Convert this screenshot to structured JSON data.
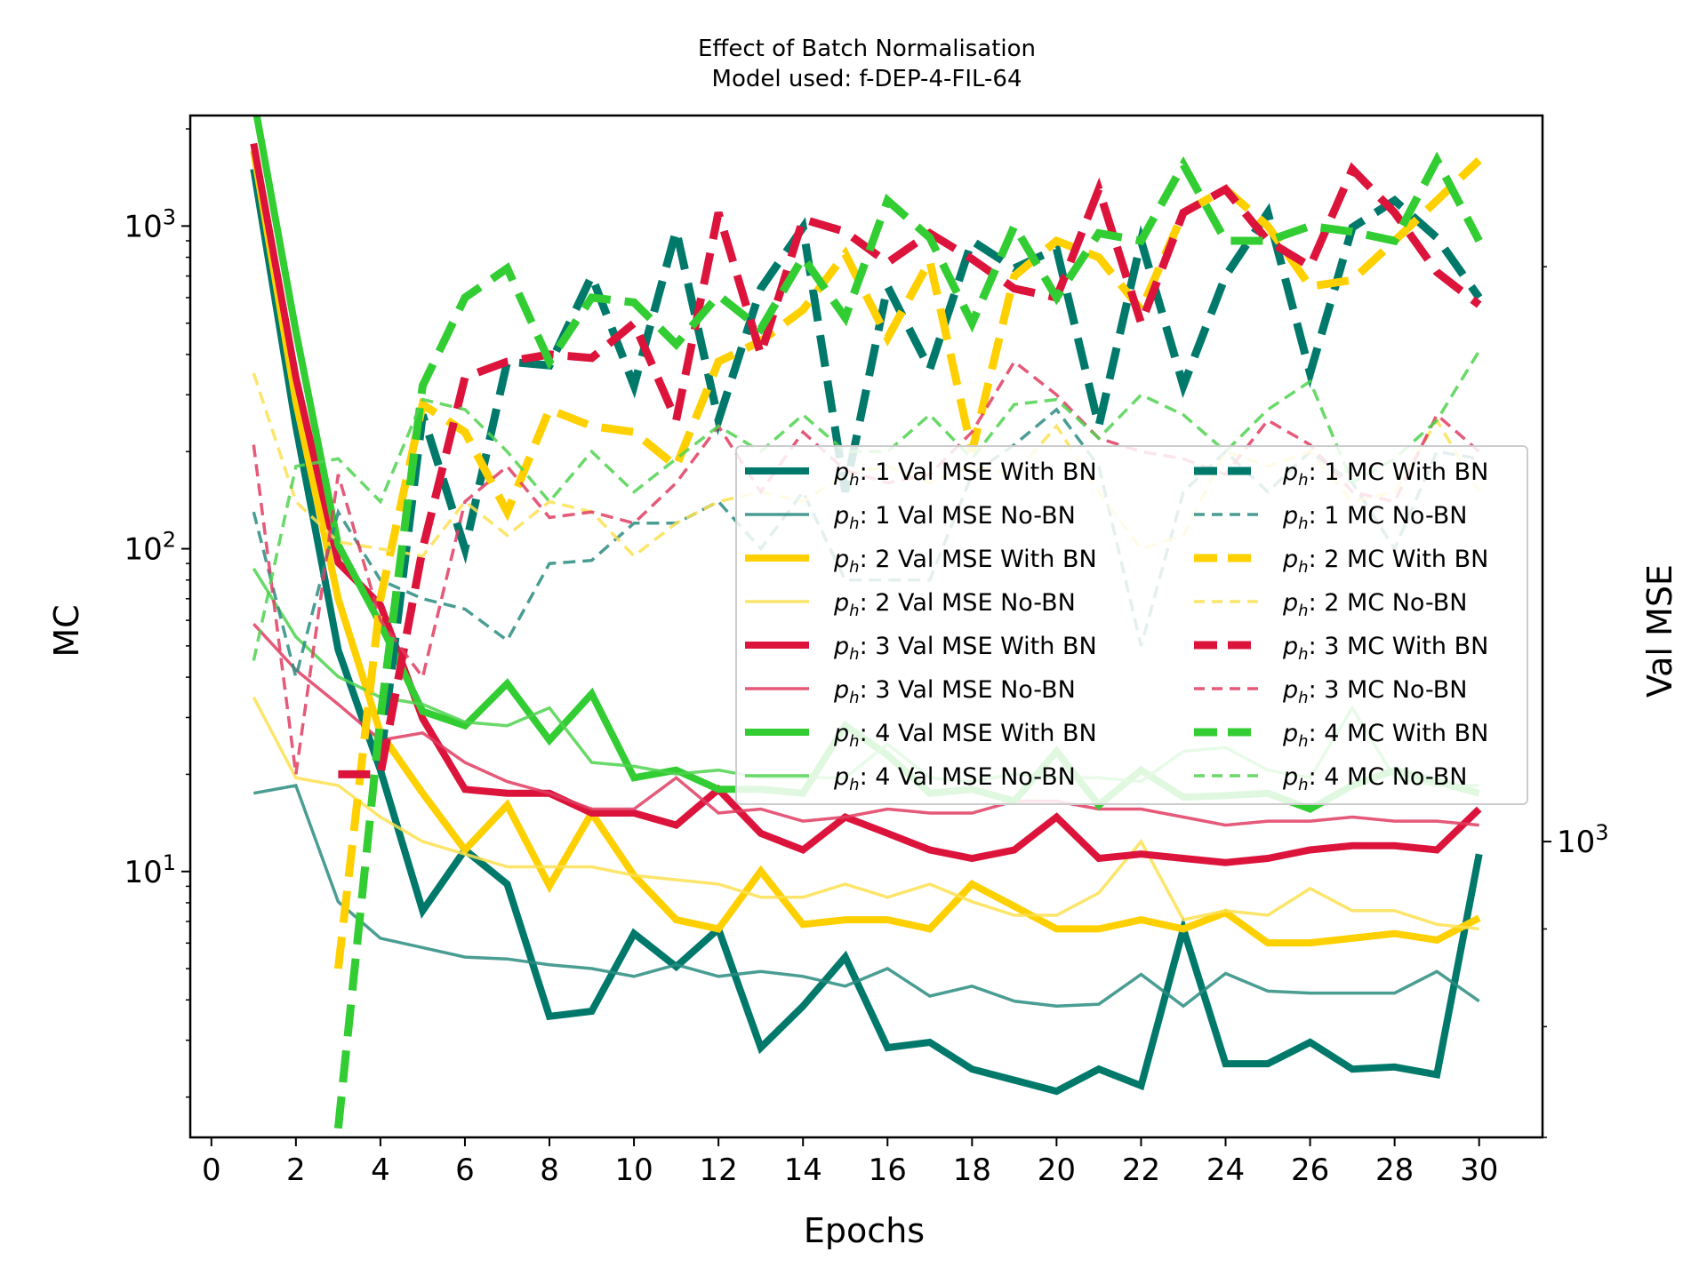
{
  "chart_data": {
    "type": "line",
    "title": "Effect of Batch Normalisation",
    "subtitle": "Model used: f-DEP-4-FIL-64",
    "xlabel": "Epochs",
    "ylabel": "MC",
    "ylabel_right": "Val MSE",
    "xlim": [
      -0.5,
      31.5
    ],
    "x_ticks": [
      "0",
      "2",
      "4",
      "6",
      "8",
      "10",
      "12",
      "14",
      "16",
      "18",
      "20",
      "22",
      "24",
      "26",
      "28",
      "30"
    ],
    "left_axis": {
      "scale": "log",
      "ylim": [
        1.5,
        2200
      ],
      "ticks": [
        "10^1",
        "10^2",
        "10^3"
      ]
    },
    "right_axis": {
      "scale": "log",
      "ylim": [
        700,
        2400
      ],
      "ticks": [
        "10^3"
      ]
    },
    "grid": false,
    "legend": {
      "placement": "center-right",
      "ncol": 2
    },
    "x": [
      1,
      2,
      3,
      4,
      5,
      6,
      7,
      8,
      9,
      10,
      11,
      12,
      13,
      14,
      15,
      16,
      17,
      18,
      19,
      20,
      21,
      22,
      23,
      24,
      25,
      26,
      27,
      28,
      29,
      30
    ],
    "series": [
      {
        "name": "1 Val MSE With BN",
        "axis": "right",
        "style": "thick-solid",
        "color": "#00796b",
        "values": [
          2250,
          1650,
          1260,
          1090,
          920,
          990,
          950,
          810,
          815,
          895,
          860,
          900,
          780,
          820,
          870,
          780,
          785,
          760,
          750,
          740,
          760,
          745,
          900,
          765,
          765,
          785,
          760,
          762,
          755,
          985
        ]
      },
      {
        "name": "1 Val MSE No-BN",
        "axis": "right",
        "style": "thin-solid",
        "color": "#2a8c80",
        "values": [
          1060,
          1070,
          930,
          890,
          880,
          870,
          868,
          862,
          858,
          850,
          862,
          850,
          855,
          850,
          840,
          858,
          830,
          840,
          825,
          820,
          822,
          852,
          820,
          853,
          835,
          833,
          833,
          833,
          855,
          825
        ]
      },
      {
        "name": "2 Val MSE With BN",
        "axis": "right",
        "style": "thick-solid",
        "color": "#ffd000",
        "values": [
          2300,
          1700,
          1340,
          1140,
          1060,
          990,
          1045,
          948,
          1035,
          960,
          910,
          900,
          965,
          905,
          910,
          910,
          900,
          950,
          925,
          900,
          900,
          910,
          900,
          918,
          885,
          885,
          890,
          895,
          888,
          912
        ]
      },
      {
        "name": "2 Val MSE No-BN",
        "axis": "right",
        "style": "thin-solid",
        "color": "#fce050",
        "values": [
          1190,
          1080,
          1070,
          1030,
          1000,
          985,
          970,
          970,
          970,
          960,
          955,
          950,
          935,
          935,
          950,
          935,
          950,
          930,
          915,
          915,
          940,
          1000,
          910,
          920,
          915,
          945,
          920,
          920,
          905,
          900
        ]
      },
      {
        "name": "3 Val MSE With BN",
        "axis": "right",
        "style": "thick-solid",
        "color": "#dc143c",
        "values": [
          2320,
          1750,
          1400,
          1330,
          1160,
          1065,
          1060,
          1060,
          1035,
          1035,
          1020,
          1065,
          1010,
          990,
          1030,
          1010,
          990,
          980,
          990,
          1030,
          980,
          985,
          980,
          975,
          980,
          990,
          995,
          995,
          990,
          1040
        ]
      },
      {
        "name": "3 Val MSE No-BN",
        "axis": "right",
        "style": "thin-solid",
        "color": "#e03c62",
        "values": [
          1300,
          1230,
          1180,
          1130,
          1140,
          1100,
          1075,
          1060,
          1040,
          1040,
          1080,
          1035,
          1040,
          1025,
          1030,
          1040,
          1035,
          1035,
          1050,
          1050,
          1040,
          1040,
          1030,
          1020,
          1025,
          1025,
          1030,
          1025,
          1025,
          1020
        ]
      },
      {
        "name": "4 Val MSE With BN",
        "axis": "right",
        "style": "thick-solid",
        "color": "#32cd32",
        "values": [
          2450,
          1850,
          1430,
          1300,
          1170,
          1150,
          1210,
          1130,
          1195,
          1080,
          1090,
          1065,
          1065,
          1060,
          1150,
          1110,
          1060,
          1065,
          1050,
          1115,
          1045,
          1090,
          1055,
          1057,
          1060,
          1040,
          1070,
          1090,
          1075,
          1060
        ]
      },
      {
        "name": "4 Val MSE No-BN",
        "axis": "right",
        "style": "thin-solid",
        "color": "#4fd24f",
        "values": [
          1390,
          1280,
          1220,
          1190,
          1180,
          1155,
          1150,
          1175,
          1100,
          1095,
          1085,
          1090,
          1080,
          1080,
          1080,
          1125,
          1080,
          1075,
          1085,
          1080,
          1080,
          1075,
          1115,
          1120,
          1090,
          1080,
          1175,
          1080,
          1070,
          1070
        ]
      },
      {
        "name": "1 MC With BN",
        "axis": "left",
        "style": "thick-dashed",
        "color": "#00796b",
        "values": [
          null,
          null,
          null,
          22,
          260,
          100,
          380,
          370,
          700,
          320,
          970,
          250,
          640,
          990,
          150,
          650,
          360,
          900,
          740,
          850,
          240,
          900,
          320,
          700,
          1100,
          350,
          990,
          1200,
          920,
          600
        ]
      },
      {
        "name": "1 MC No-BN",
        "axis": "left",
        "style": "thin-dashed",
        "color": "#2a8c80",
        "values": [
          130,
          40,
          130,
          80,
          70,
          65,
          52,
          90,
          92,
          120,
          120,
          140,
          100,
          150,
          80,
          80,
          80,
          170,
          210,
          270,
          180,
          50,
          150,
          200,
          150,
          200,
          160,
          100,
          200,
          190
        ]
      },
      {
        "name": "2 MC With BN",
        "axis": "left",
        "style": "thick-dashed",
        "color": "#ffd000",
        "values": [
          null,
          null,
          5,
          70,
          280,
          230,
          130,
          270,
          240,
          230,
          180,
          380,
          440,
          550,
          820,
          450,
          780,
          200,
          700,
          900,
          800,
          550,
          1100,
          1300,
          1000,
          650,
          680,
          900,
          1200,
          1600
        ]
      },
      {
        "name": "2 MC No-BN",
        "axis": "left",
        "style": "thin-dashed",
        "color": "#fce050",
        "values": [
          350,
          140,
          105,
          100,
          95,
          140,
          110,
          140,
          130,
          95,
          120,
          140,
          150,
          140,
          170,
          180,
          160,
          180,
          170,
          240,
          150,
          100,
          110,
          200,
          180,
          200,
          140,
          150,
          250,
          150
        ]
      },
      {
        "name": "3 MC With BN",
        "axis": "left",
        "style": "thick-dashed",
        "color": "#dc143c",
        "values": [
          null,
          null,
          20,
          20,
          100,
          340,
          380,
          400,
          390,
          500,
          250,
          1100,
          400,
          1050,
          960,
          770,
          950,
          790,
          640,
          600,
          1300,
          500,
          1100,
          1300,
          900,
          750,
          1500,
          1100,
          720,
          570
        ]
      },
      {
        "name": "3 MC No-BN",
        "axis": "left",
        "style": "thin-dashed",
        "color": "#e03c62",
        "values": [
          210,
          20,
          170,
          60,
          40,
          140,
          180,
          125,
          130,
          120,
          160,
          240,
          150,
          230,
          175,
          160,
          170,
          230,
          380,
          300,
          220,
          200,
          190,
          170,
          250,
          210,
          150,
          140,
          260,
          200
        ]
      },
      {
        "name": "4 MC With BN",
        "axis": "left",
        "style": "thick-dashed",
        "color": "#32cd32",
        "values": [
          null,
          null,
          1.6,
          30,
          320,
          600,
          740,
          380,
          600,
          580,
          430,
          610,
          480,
          800,
          520,
          1200,
          920,
          500,
          1000,
          600,
          950,
          900,
          1550,
          900,
          900,
          1000,
          960,
          900,
          1600,
          900
        ]
      },
      {
        "name": "4 MC No-BN",
        "axis": "left",
        "style": "thin-dashed",
        "color": "#4fd24f",
        "values": [
          45,
          180,
          190,
          140,
          290,
          270,
          200,
          140,
          200,
          150,
          190,
          240,
          200,
          260,
          200,
          200,
          260,
          190,
          280,
          290,
          220,
          300,
          260,
          200,
          270,
          330,
          160,
          190,
          250,
          410
        ]
      }
    ]
  },
  "legend_prefix": "p",
  "legend_subscript": "h"
}
